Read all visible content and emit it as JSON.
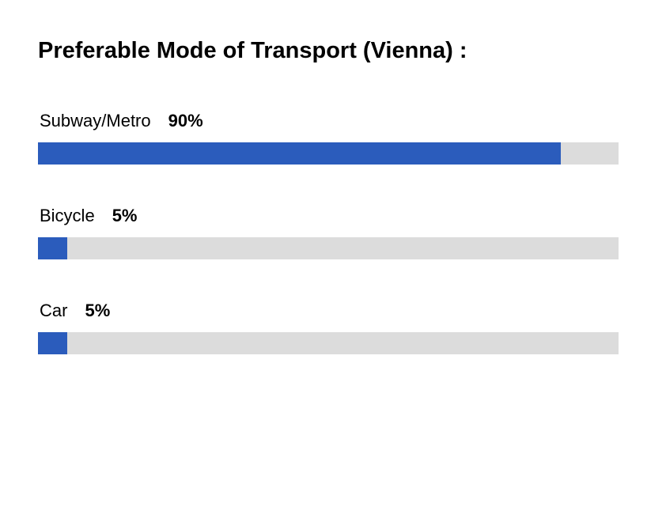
{
  "title": "Preferable Mode of Transport (Vienna) :",
  "colors": {
    "fill": "#2b5cbc",
    "track": "#dcdcdc"
  },
  "chart_data": {
    "type": "bar",
    "orientation": "horizontal",
    "title": "Preferable Mode of Transport (Vienna) :",
    "categories": [
      "Subway/Metro",
      "Bicycle",
      "Car"
    ],
    "values": [
      90,
      5,
      5
    ],
    "value_labels": [
      "90%",
      "5%",
      "5%"
    ],
    "unit": "%",
    "xlim": [
      0,
      100
    ],
    "grid": false,
    "legend": "none"
  }
}
